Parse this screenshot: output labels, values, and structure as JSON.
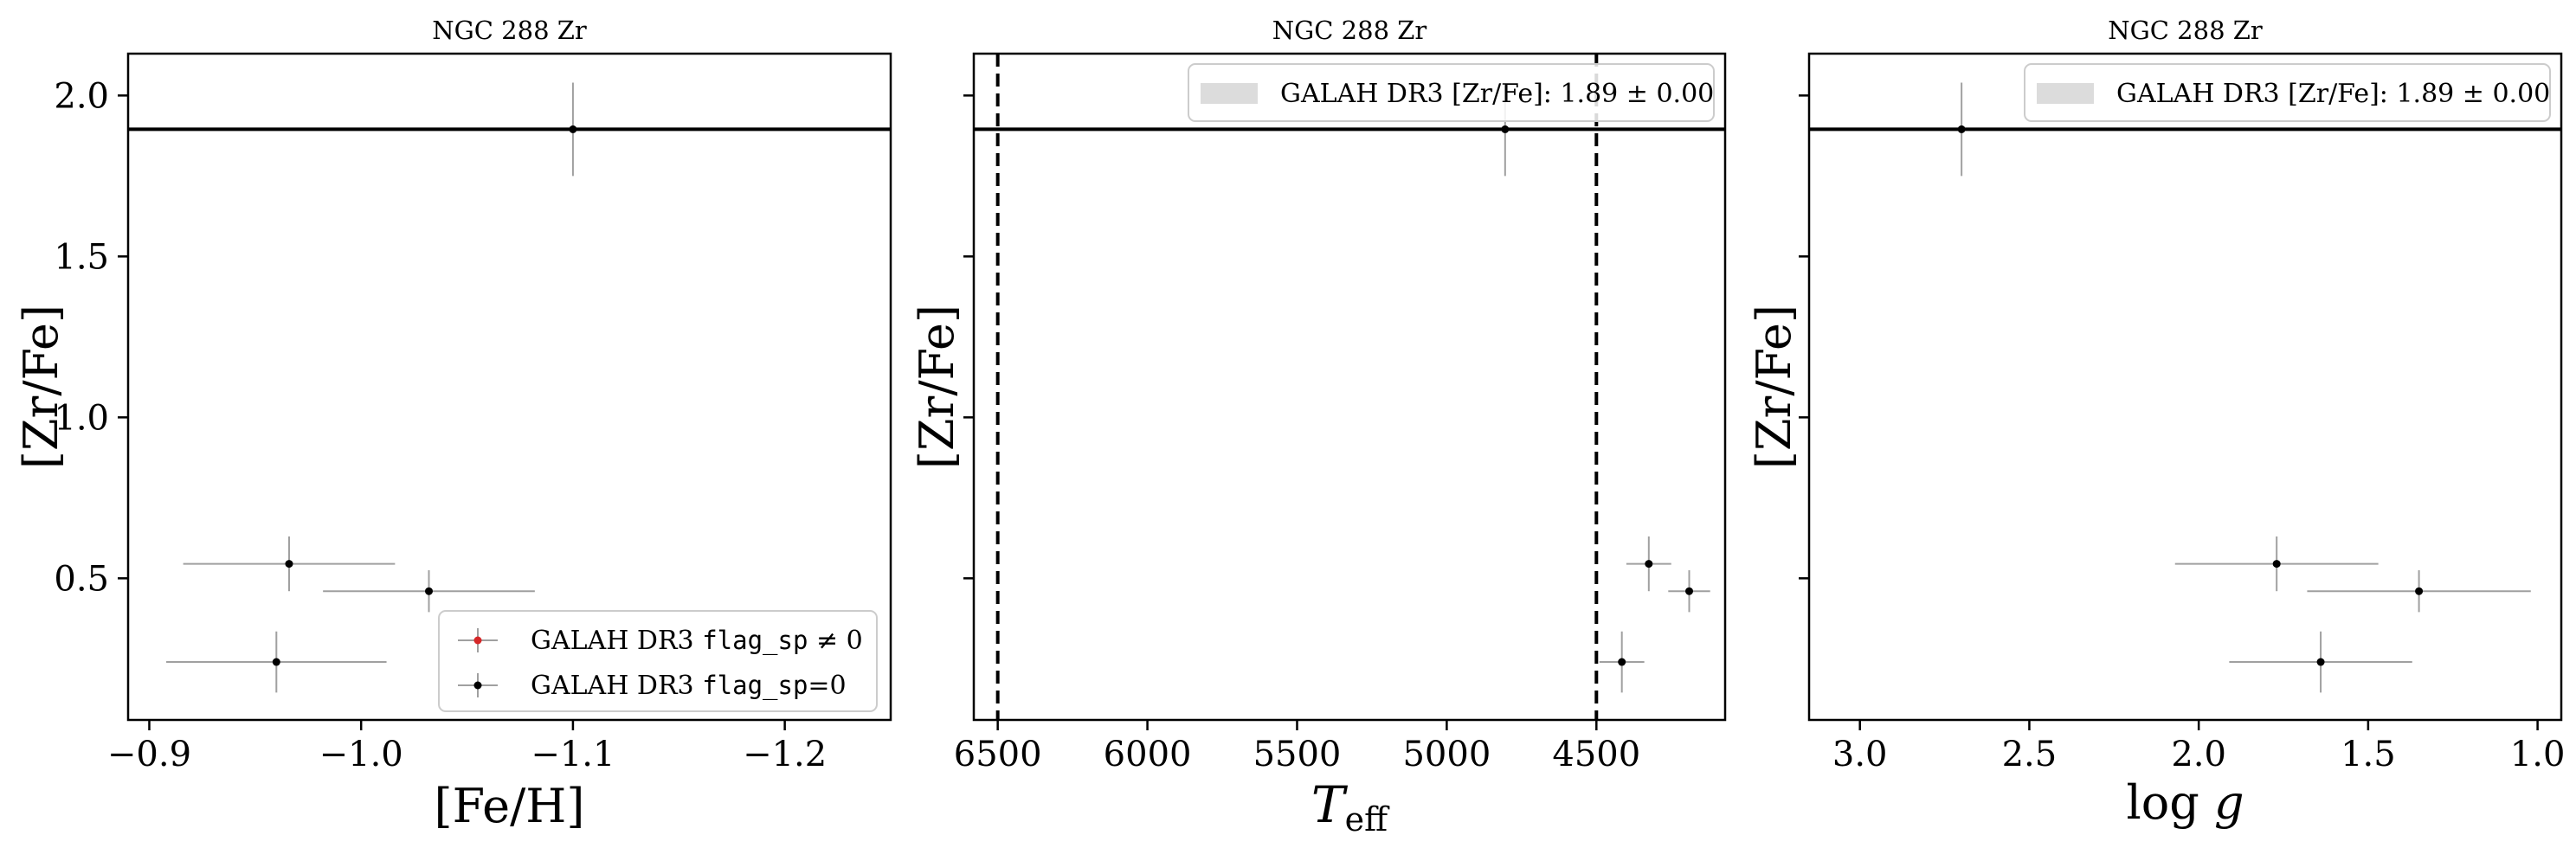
{
  "figure": {
    "colors": {
      "flagged": "#d62728",
      "good": "#000000",
      "errorbar": "#a0a0a0",
      "band": "#dcdcdc"
    }
  },
  "chart_data": [
    {
      "type": "scatter",
      "title": "NGC 288 Zr",
      "xlabel": "[Fe/H]",
      "ylabel": "[Zr/Fe]",
      "xlim": [
        -0.89,
        -1.25
      ],
      "ylim": [
        0.06,
        2.13
      ],
      "xticks": [
        -0.9,
        -1.0,
        -1.1,
        -1.2
      ],
      "xtick_labels": [
        "−0.9",
        "−1.0",
        "−1.1",
        "−1.2"
      ],
      "yticks": [
        0.5,
        1.0,
        1.5,
        2.0
      ],
      "ytick_labels": [
        "0.5",
        "1.0",
        "1.5",
        "2.0"
      ],
      "yticks_labeled": true,
      "hline": 1.895,
      "vlines": [],
      "legend": {
        "placement": "lower-right",
        "entries": [
          {
            "kind": "flagged",
            "prefix": "GALAH DR3 ",
            "code": "flag_sp",
            "suffix": " ≠ 0"
          },
          {
            "kind": "good",
            "prefix": "GALAH DR3 ",
            "code": "flag_sp",
            "suffix": "=0"
          }
        ]
      },
      "points": [
        {
          "x": -1.1,
          "y": 1.895,
          "xerr": 0.0,
          "yerr": 0.145
        },
        {
          "x": -0.966,
          "y": 0.545,
          "xerr": 0.05,
          "yerr": 0.085
        },
        {
          "x": -1.032,
          "y": 0.46,
          "xerr": 0.05,
          "yerr": 0.065
        },
        {
          "x": -0.96,
          "y": 0.24,
          "xerr": 0.052,
          "yerr": 0.095
        }
      ]
    },
    {
      "type": "scatter",
      "title": "NGC 288 Zr",
      "xlabel": "T_eff",
      "ylabel": "[Zr/Fe]",
      "xlim": [
        6580,
        4070
      ],
      "ylim": [
        0.06,
        2.13
      ],
      "xticks": [
        6500,
        6000,
        5500,
        5000,
        4500
      ],
      "xtick_labels": [
        "6500",
        "6000",
        "5500",
        "5000",
        "4500"
      ],
      "yticks": [
        0.5,
        1.0,
        1.5,
        2.0
      ],
      "ytick_labels": [
        "",
        "",
        "",
        ""
      ],
      "yticks_labeled": false,
      "hline": 1.895,
      "vlines": [
        6500,
        4500
      ],
      "legend": {
        "placement": "top-right",
        "entries": [
          {
            "kind": "band",
            "text": "GALAH DR3 [Zr/Fe]: 1.89 ± 0.00"
          }
        ]
      },
      "points": [
        {
          "x": 4805,
          "y": 1.895,
          "xerr": 0,
          "yerr": 0.145
        },
        {
          "x": 4325,
          "y": 0.545,
          "xerr": 75,
          "yerr": 0.085
        },
        {
          "x": 4190,
          "y": 0.46,
          "xerr": 70,
          "yerr": 0.065
        },
        {
          "x": 4415,
          "y": 0.24,
          "xerr": 75,
          "yerr": 0.095
        }
      ]
    },
    {
      "type": "scatter",
      "title": "NGC 288 Zr",
      "xlabel": "log g",
      "ylabel": "[Zr/Fe]",
      "xlim": [
        3.15,
        0.93
      ],
      "ylim": [
        0.06,
        2.13
      ],
      "xticks": [
        3.0,
        2.5,
        2.0,
        1.5,
        1.0
      ],
      "xtick_labels": [
        "3.0",
        "2.5",
        "2.0",
        "1.5",
        "1.0"
      ],
      "yticks": [
        0.5,
        1.0,
        1.5,
        2.0
      ],
      "ytick_labels": [
        "",
        "",
        "",
        ""
      ],
      "yticks_labeled": false,
      "hline": 1.895,
      "vlines": [],
      "legend": {
        "placement": "top-right",
        "entries": [
          {
            "kind": "band",
            "text": "GALAH DR3 [Zr/Fe]: 1.89 ± 0.00"
          }
        ]
      },
      "points": [
        {
          "x": 2.7,
          "y": 1.895,
          "xerr": 0.0,
          "yerr": 0.145
        },
        {
          "x": 1.77,
          "y": 0.545,
          "xerr": 0.3,
          "yerr": 0.085
        },
        {
          "x": 1.35,
          "y": 0.46,
          "xerr": 0.33,
          "yerr": 0.065
        },
        {
          "x": 1.64,
          "y": 0.24,
          "xerr": 0.27,
          "yerr": 0.095
        }
      ]
    }
  ]
}
